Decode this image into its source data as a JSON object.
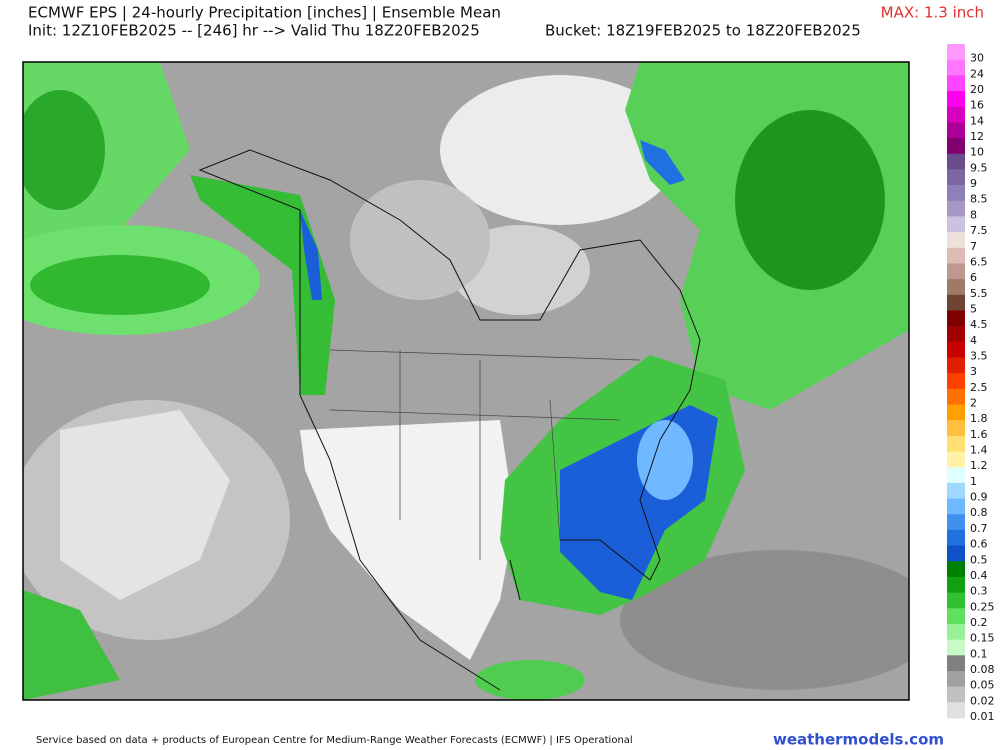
{
  "header": {
    "title": "ECMWF EPS | 24-hourly Precipitation [inches] | Ensemble Mean",
    "init": "Init: 12Z10FEB2025 -- [246] hr --> Valid Thu 18Z20FEB2025",
    "bucket": "Bucket: 18Z19FEB2025 to 18Z20FEB2025",
    "max": "MAX: 1.3 inch"
  },
  "colorbar": [
    {
      "label": "30",
      "color": "#ff99ff"
    },
    {
      "label": "24",
      "color": "#ff77ff"
    },
    {
      "label": "20",
      "color": "#ff44ff"
    },
    {
      "label": "16",
      "color": "#ff00ee"
    },
    {
      "label": "14",
      "color": "#d800c0"
    },
    {
      "label": "12",
      "color": "#aa0099"
    },
    {
      "label": "10",
      "color": "#800070"
    },
    {
      "label": "9.5",
      "color": "#6a4c8c"
    },
    {
      "label": "9",
      "color": "#7c68a4"
    },
    {
      "label": "8.5",
      "color": "#9080b8"
    },
    {
      "label": "8",
      "color": "#a898c8"
    },
    {
      "label": "7.5",
      "color": "#cac2de"
    },
    {
      "label": "7",
      "color": "#f0e0dc"
    },
    {
      "label": "6.5",
      "color": "#dcbcb4"
    },
    {
      "label": "6",
      "color": "#c09890"
    },
    {
      "label": "5.5",
      "color": "#a07868"
    },
    {
      "label": "5",
      "color": "#6e4434"
    },
    {
      "label": "4.5",
      "color": "#800000"
    },
    {
      "label": "4",
      "color": "#a00000"
    },
    {
      "label": "3.5",
      "color": "#c80000"
    },
    {
      "label": "3",
      "color": "#e02000"
    },
    {
      "label": "2.5",
      "color": "#ff4000"
    },
    {
      "label": "2",
      "color": "#ff7000"
    },
    {
      "label": "1.8",
      "color": "#ffa000"
    },
    {
      "label": "1.6",
      "color": "#ffc040"
    },
    {
      "label": "1.4",
      "color": "#ffe070"
    },
    {
      "label": "1.2",
      "color": "#fff2a8"
    },
    {
      "label": "1",
      "color": "#e0ffff"
    },
    {
      "label": "0.9",
      "color": "#a0d8ff"
    },
    {
      "label": "0.8",
      "color": "#70b8ff"
    },
    {
      "label": "0.7",
      "color": "#4090f0"
    },
    {
      "label": "0.6",
      "color": "#2070e0"
    },
    {
      "label": "0.5",
      "color": "#1050c8"
    },
    {
      "label": "0.4",
      "color": "#008000"
    },
    {
      "label": "0.3",
      "color": "#10a010"
    },
    {
      "label": "0.25",
      "color": "#30c030"
    },
    {
      "label": "0.2",
      "color": "#60e060"
    },
    {
      "label": "0.15",
      "color": "#98f098"
    },
    {
      "label": "0.1",
      "color": "#c8fac8"
    },
    {
      "label": "0.08",
      "color": "#808080"
    },
    {
      "label": "0.05",
      "color": "#a0a0a0"
    },
    {
      "label": "0.02",
      "color": "#c0c0c0"
    },
    {
      "label": "0.01",
      "color": "#e0e0e0"
    }
  ],
  "footer": {
    "credit": "Service based on data + products of European Centre for Medium-Range Weather Forecasts (ECMWF) | IFS Operational",
    "site": "weathermodels.com"
  }
}
